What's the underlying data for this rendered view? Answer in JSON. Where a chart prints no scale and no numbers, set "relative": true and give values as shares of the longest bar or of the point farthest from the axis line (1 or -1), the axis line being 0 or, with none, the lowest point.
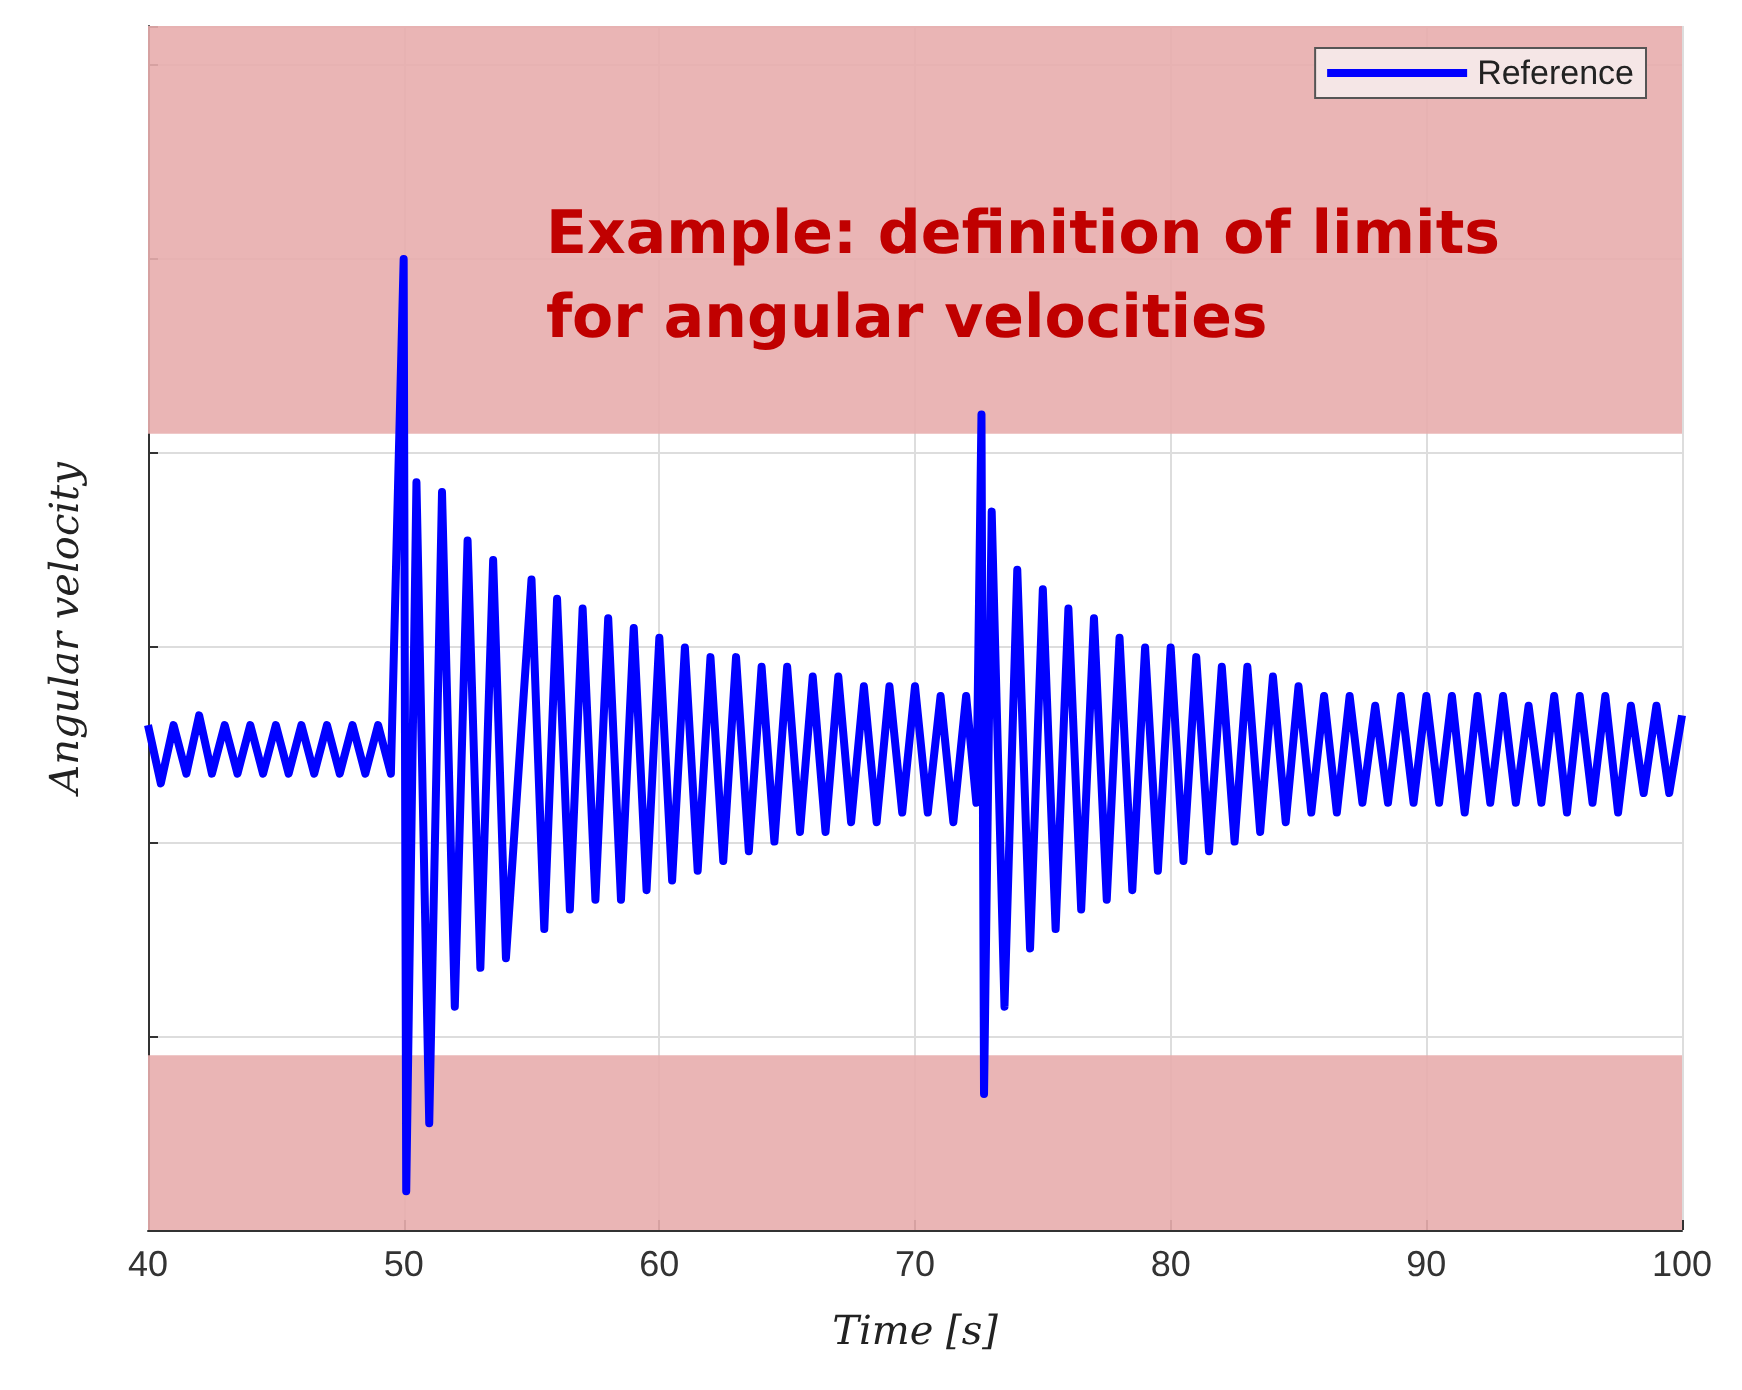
{
  "chart_data": {
    "type": "line",
    "relative": true,
    "xlabel": "Time [s]",
    "ylabel": "Angular velocity",
    "annotations": [
      "Example: definition of limits\nfor angular velocities"
    ],
    "x": [
      40,
      40.5,
      41,
      41.5,
      42,
      42.5,
      43,
      43.5,
      44,
      44.5,
      45,
      45.5,
      46,
      46.5,
      47,
      47.5,
      48,
      48.5,
      49,
      49.5,
      50,
      50.1,
      50.5,
      51,
      51.5,
      52,
      52.5,
      53,
      53.5,
      54,
      55,
      55.5,
      56,
      56.5,
      57,
      57.5,
      58,
      58.5,
      59,
      59.5,
      60,
      60.5,
      61,
      61.5,
      62,
      62.5,
      63,
      63.5,
      64,
      64.5,
      65,
      65.5,
      66,
      66.5,
      67,
      67.5,
      68,
      68.5,
      69,
      69.5,
      70,
      70.5,
      71,
      71.5,
      72,
      72.4,
      72.6,
      72.7,
      73,
      73.5,
      74,
      74.5,
      75,
      75.5,
      76,
      76.5,
      77,
      77.5,
      78,
      78.5,
      79,
      79.5,
      80,
      80.5,
      81,
      81.5,
      82,
      82.5,
      83,
      83.5,
      84,
      84.5,
      85,
      85.5,
      86,
      86.5,
      87,
      87.5,
      88,
      88.5,
      89,
      89.5,
      90,
      90.5,
      91,
      91.5,
      92,
      92.5,
      93,
      93.5,
      94,
      94.5,
      95,
      95.5,
      96,
      96.5,
      97,
      97.5,
      98,
      98.5,
      99,
      99.5,
      100
    ],
    "series": [
      {
        "name": "Reference",
        "color": "#0000ff",
        "values": [
          0.52,
          0.46,
          0.52,
          0.47,
          0.53,
          0.47,
          0.52,
          0.47,
          0.52,
          0.47,
          0.52,
          0.47,
          0.52,
          0.47,
          0.52,
          0.47,
          0.52,
          0.47,
          0.52,
          0.47,
          1.0,
          0.04,
          0.77,
          0.11,
          0.76,
          0.23,
          0.71,
          0.27,
          0.69,
          0.28,
          0.67,
          0.31,
          0.65,
          0.33,
          0.64,
          0.34,
          0.63,
          0.34,
          0.62,
          0.35,
          0.61,
          0.36,
          0.6,
          0.37,
          0.59,
          0.38,
          0.59,
          0.39,
          0.58,
          0.4,
          0.58,
          0.41,
          0.57,
          0.41,
          0.57,
          0.42,
          0.56,
          0.42,
          0.56,
          0.43,
          0.56,
          0.43,
          0.55,
          0.42,
          0.55,
          0.44,
          0.84,
          0.14,
          0.74,
          0.23,
          0.68,
          0.29,
          0.66,
          0.31,
          0.64,
          0.33,
          0.63,
          0.34,
          0.61,
          0.35,
          0.6,
          0.37,
          0.6,
          0.38,
          0.59,
          0.39,
          0.58,
          0.4,
          0.58,
          0.41,
          0.57,
          0.42,
          0.56,
          0.43,
          0.55,
          0.43,
          0.55,
          0.44,
          0.54,
          0.44,
          0.55,
          0.44,
          0.55,
          0.44,
          0.55,
          0.43,
          0.55,
          0.44,
          0.55,
          0.44,
          0.54,
          0.44,
          0.55,
          0.43,
          0.55,
          0.44,
          0.55,
          0.43,
          0.54,
          0.45,
          0.54,
          0.45,
          0.53
        ]
      }
    ],
    "bands": [
      {
        "axis": "y",
        "from": 0.82,
        "to": 1.24,
        "color": "#e8adad"
      },
      {
        "axis": "y",
        "from": 0,
        "to": 0.18,
        "color": "#e8adad"
      }
    ],
    "xlim": [
      40,
      100
    ],
    "xticks": [
      40,
      50,
      60,
      70,
      80,
      90,
      100
    ],
    "grid": true,
    "legend": "top right"
  }
}
